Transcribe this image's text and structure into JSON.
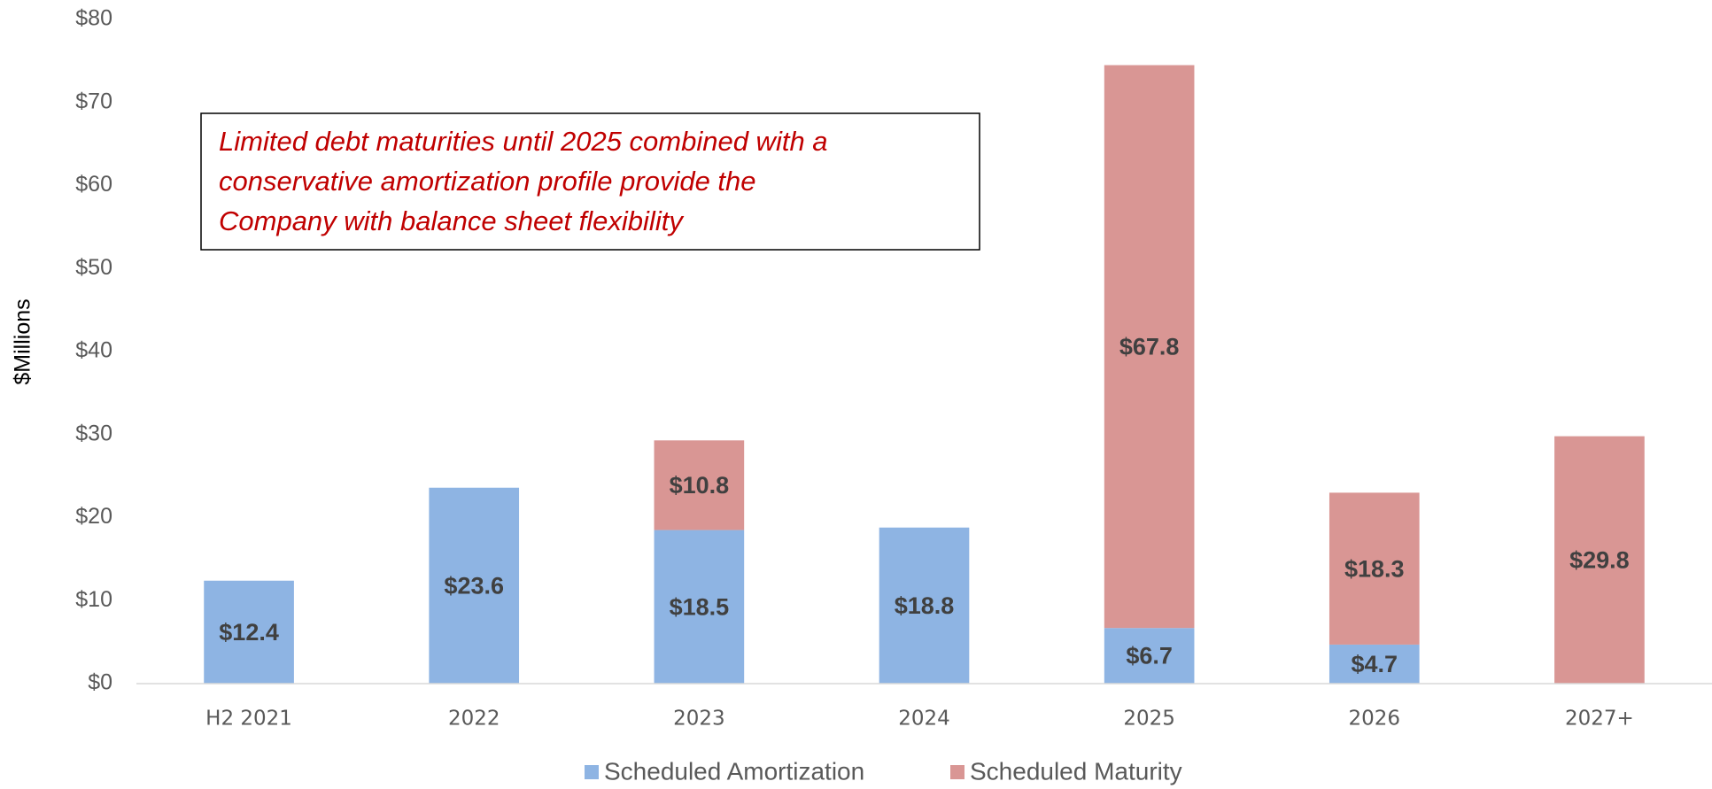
{
  "chart_data": {
    "type": "stacked_bar",
    "y_axis_label": "$Millions",
    "annotation": [
      "Limited debt maturities until 2025 combined with a",
      "conservative amortization profile provide the",
      "Company with balance sheet flexibility"
    ],
    "categories": [
      "H2 2021",
      "2022",
      "2023",
      "2024",
      "2025",
      "2026",
      "2027+"
    ],
    "series": [
      {
        "name": "Scheduled Amortization",
        "color": "#8eb4e3",
        "values": [
          12.4,
          23.6,
          18.5,
          18.8,
          6.7,
          4.7,
          null
        ],
        "value_labels": [
          "$12.4",
          "$23.6",
          "$18.5",
          "$18.8",
          "$6.7",
          "$4.7",
          null
        ]
      },
      {
        "name": "Scheduled Maturity",
        "color": "#d99694",
        "values": [
          null,
          null,
          10.8,
          null,
          67.8,
          18.3,
          29.8
        ],
        "value_labels": [
          null,
          null,
          "$10.8",
          null,
          "$67.8",
          "$18.3",
          "$29.8"
        ]
      }
    ],
    "ylim": [
      0,
      80
    ],
    "yticks": [
      {
        "value": 0,
        "label": "$0"
      },
      {
        "value": 10,
        "label": "$10"
      },
      {
        "value": 20,
        "label": "$20"
      },
      {
        "value": 30,
        "label": "$30"
      },
      {
        "value": 40,
        "label": "$40"
      },
      {
        "value": 50,
        "label": "$50"
      },
      {
        "value": 60,
        "label": "$60"
      },
      {
        "value": 70,
        "label": "$70"
      },
      {
        "value": 80,
        "label": "$80"
      }
    ],
    "legend": "bottom",
    "grid": false
  }
}
